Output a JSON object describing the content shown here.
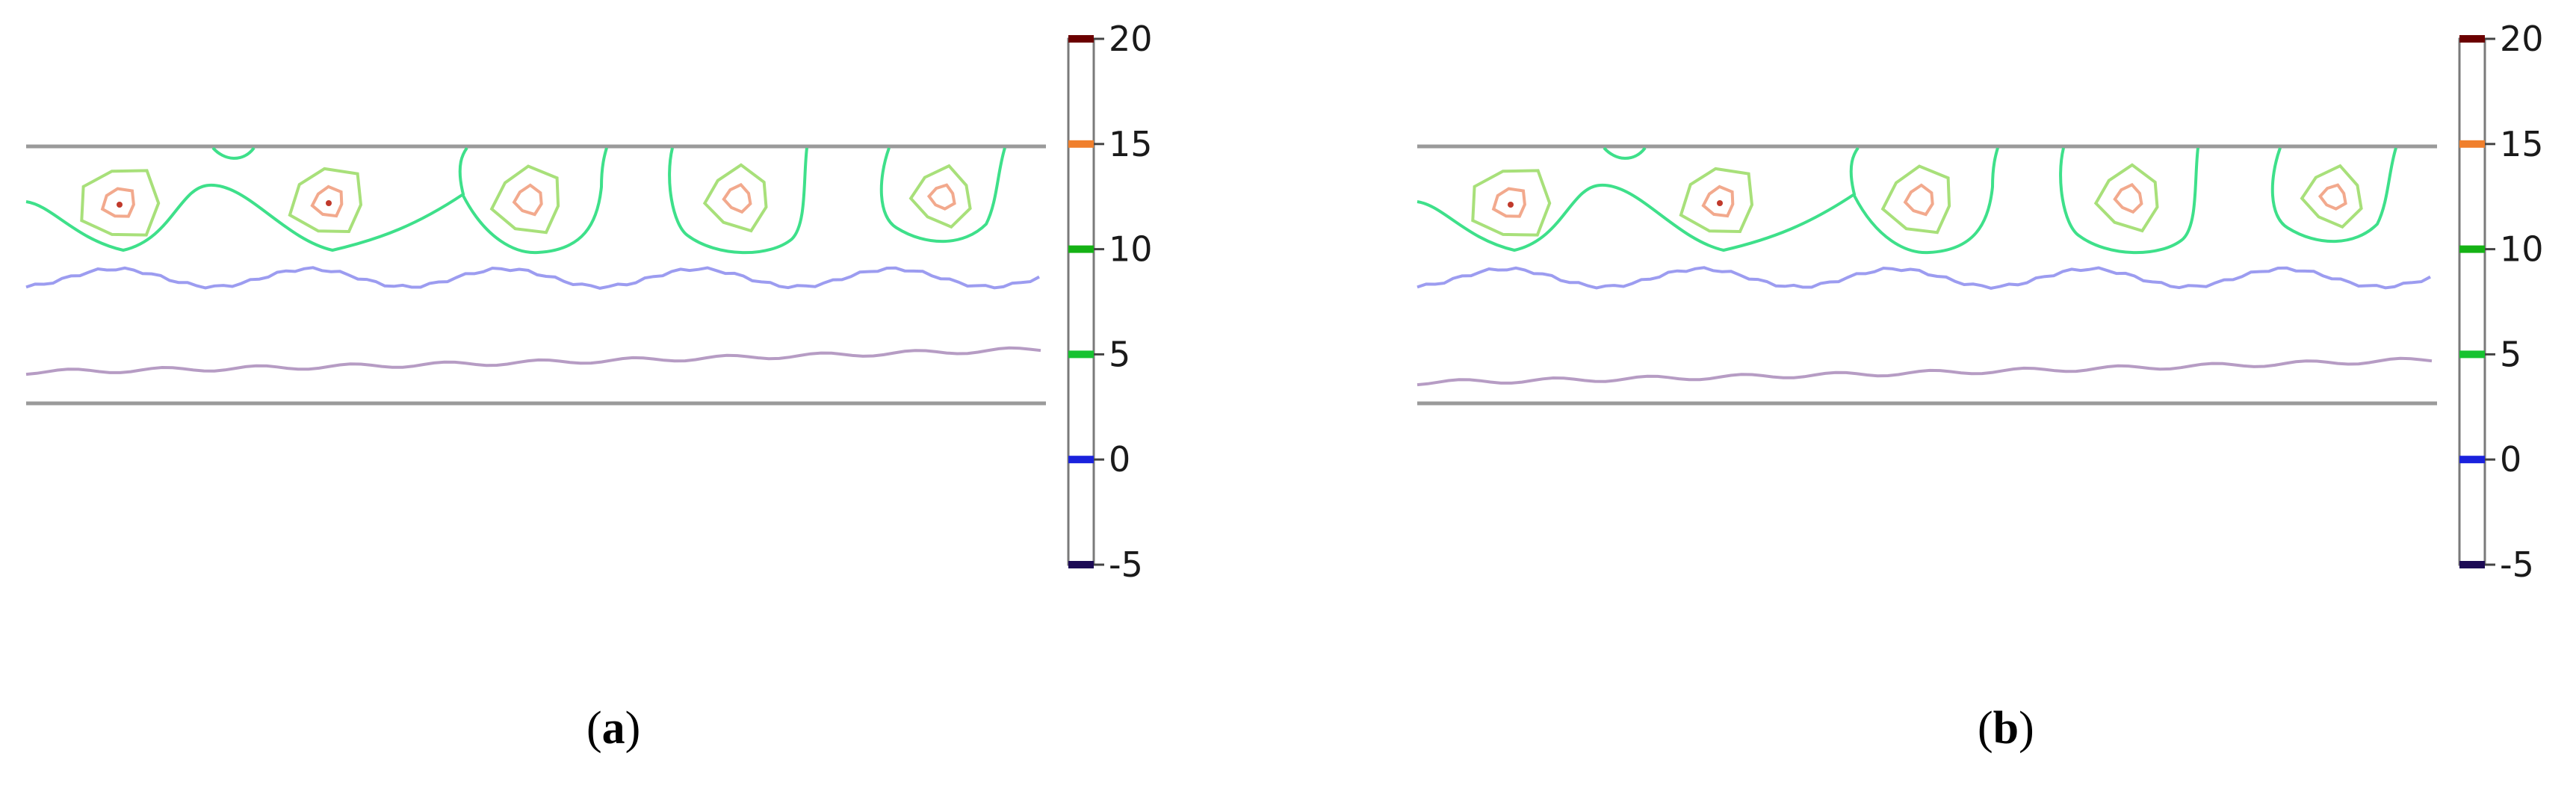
{
  "colorbar": {
    "ticks": [
      "20",
      "15",
      "10",
      "5",
      "0",
      "-5"
    ],
    "tick_colors": [
      "#6b0000",
      "#f07f2c",
      "#15b215",
      "#16c230",
      "#1a22dd",
      "#1c0a55"
    ]
  },
  "contour_colors": {
    "level_15": "#f2a98d",
    "level_12": "#a8e07a",
    "level_10": "#3ee08a",
    "level_8": "#9c9cf0",
    "level_5": "#b69cc4"
  },
  "panels": [
    {
      "letter": "a"
    },
    {
      "letter": "b"
    }
  ]
}
